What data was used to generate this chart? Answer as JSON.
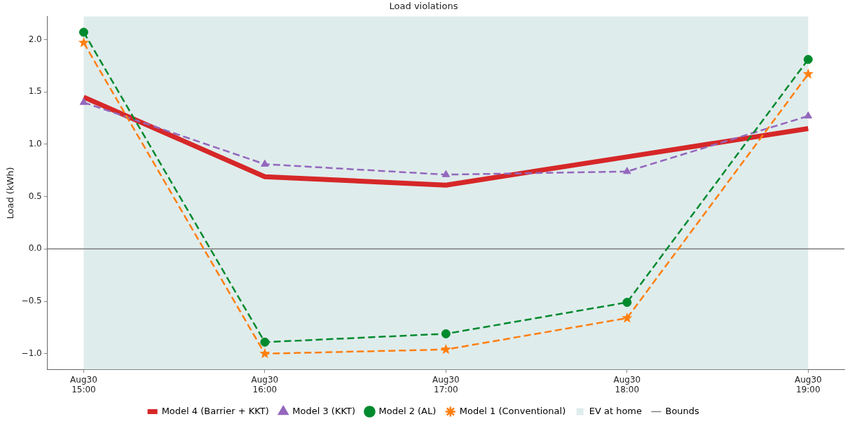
{
  "chart_data": {
    "type": "line",
    "title": "Load violations",
    "ylabel": "Load (kWh)",
    "categories": [
      "Aug30\n15:00",
      "Aug30\n16:00",
      "Aug30\n17:00",
      "Aug30\n18:00",
      "Aug30\n19:00"
    ],
    "ylim": [
      -1.15,
      2.22
    ],
    "yticks": [
      {
        "value": -1,
        "label": "−1.0"
      },
      {
        "value": -0.5,
        "label": "−0.5"
      },
      {
        "value": 0,
        "label": "0.0"
      },
      {
        "value": 0.5,
        "label": "0.5"
      },
      {
        "value": 1,
        "label": "1.0"
      },
      {
        "value": 1.5,
        "label": "1.5"
      },
      {
        "value": 2,
        "label": "2.0"
      }
    ],
    "grid": false,
    "legend": "bottom",
    "series": [
      {
        "name": "Model 4 (Barrier + KKT)",
        "color": "#d62728",
        "values": [
          1.45,
          0.69,
          0.61,
          0.88,
          1.15
        ],
        "marker": "none",
        "line_style": "solid"
      },
      {
        "name": "Model 3 (KKT)",
        "color": "#9467bd",
        "values": [
          1.4,
          0.81,
          0.71,
          0.74,
          1.27
        ],
        "marker": "triangle",
        "line_style": "dashed"
      },
      {
        "name": "Model 2 (AL)",
        "color": "#008a2e",
        "values": [
          2.07,
          -0.89,
          -0.81,
          -0.51,
          1.81
        ],
        "marker": "circle",
        "line_style": "dashed"
      },
      {
        "name": "Model 1 (Conventional)",
        "color": "#ff7f0e",
        "values": [
          1.97,
          -1.0,
          -0.96,
          -0.66,
          1.67
        ],
        "marker": "star",
        "line_style": "dashed"
      }
    ],
    "bands": [
      {
        "axis": "x",
        "from": "Aug30\n15:00",
        "to": "Aug30\n19:00",
        "label": "EV at home",
        "color": "#dfecec"
      }
    ],
    "ref_lines": [
      {
        "axis": "y",
        "value": 0,
        "label": "Bounds",
        "color": "#7f7f7f"
      }
    ]
  }
}
